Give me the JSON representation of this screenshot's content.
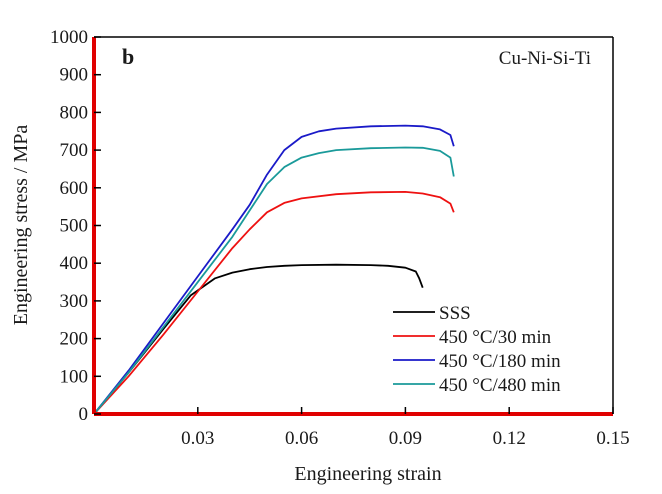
{
  "chart_data": {
    "type": "line",
    "xlabel": "Engineering strain",
    "ylabel": "Engineering stress / MPa",
    "xlim": [
      0,
      0.15
    ],
    "ylim": [
      0,
      1000
    ],
    "x_ticks": [
      0.03,
      0.06,
      0.09,
      0.12,
      0.15
    ],
    "x_tick_labels": [
      "0.03",
      "0.06",
      "0.09",
      "0.12",
      "0.15"
    ],
    "y_ticks": [
      0,
      100,
      200,
      300,
      400,
      500,
      600,
      700,
      800,
      900,
      1000
    ],
    "y_tick_labels": [
      "0",
      "100",
      "200",
      "300",
      "400",
      "500",
      "600",
      "700",
      "800",
      "900",
      "1000"
    ],
    "panel_label": "b",
    "annotation": "Cu-Ni-Si-Ti",
    "grid": false,
    "legend_position": "bottom-right",
    "axis_color": "#e00000",
    "series": [
      {
        "name": "SSS",
        "color": "#000000",
        "x": [
          0,
          0.01,
          0.02,
          0.028,
          0.035,
          0.04,
          0.045,
          0.05,
          0.055,
          0.06,
          0.07,
          0.08,
          0.085,
          0.09,
          0.093,
          0.094,
          0.095
        ],
        "y": [
          0,
          110,
          225,
          315,
          360,
          375,
          384,
          390,
          393,
          395,
          396,
          395,
          393,
          388,
          378,
          360,
          335
        ]
      },
      {
        "name": "450 °C/30 min",
        "color": "#ee1111",
        "x": [
          0,
          0.01,
          0.02,
          0.03,
          0.04,
          0.045,
          0.05,
          0.055,
          0.06,
          0.07,
          0.08,
          0.09,
          0.095,
          0.1,
          0.103,
          0.104
        ],
        "y": [
          0,
          100,
          210,
          325,
          440,
          490,
          535,
          560,
          572,
          583,
          588,
          589,
          585,
          575,
          558,
          535
        ]
      },
      {
        "name": "450 °C/180 min",
        "color": "#1a1ac8",
        "x": [
          0,
          0.01,
          0.02,
          0.03,
          0.04,
          0.045,
          0.05,
          0.055,
          0.06,
          0.065,
          0.07,
          0.08,
          0.09,
          0.095,
          0.1,
          0.103,
          0.104
        ],
        "y": [
          0,
          115,
          240,
          365,
          490,
          555,
          635,
          700,
          735,
          750,
          757,
          763,
          765,
          763,
          755,
          740,
          710
        ]
      },
      {
        "name": "450 °C/480 min",
        "color": "#1a9a9a",
        "x": [
          0,
          0.01,
          0.02,
          0.03,
          0.04,
          0.045,
          0.05,
          0.055,
          0.06,
          0.065,
          0.07,
          0.08,
          0.09,
          0.095,
          0.1,
          0.103,
          0.104
        ],
        "y": [
          0,
          110,
          230,
          350,
          470,
          540,
          610,
          655,
          680,
          692,
          700,
          705,
          707,
          706,
          698,
          680,
          630
        ]
      }
    ]
  }
}
